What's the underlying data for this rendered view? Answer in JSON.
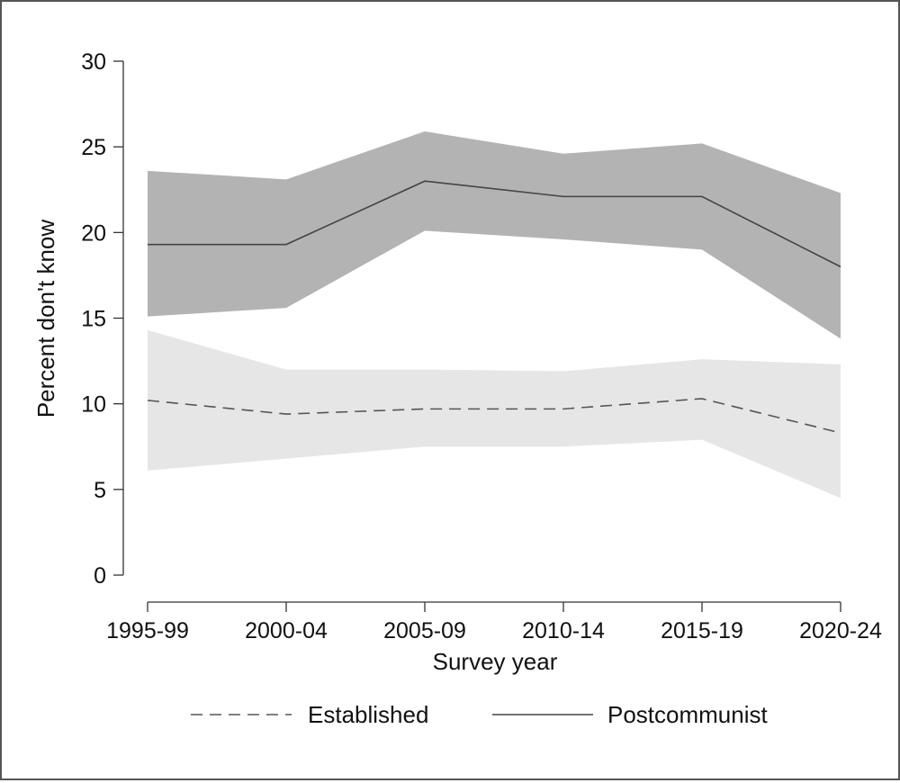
{
  "chart_data": {
    "type": "line",
    "title": "",
    "xlabel": "Survey year",
    "ylabel": "Percent don't know",
    "categories": [
      "1995-99",
      "2000-04",
      "2005-09",
      "2010-14",
      "2015-19",
      "2020-24"
    ],
    "ylim": [
      0,
      30
    ],
    "yticks": [
      0,
      5,
      10,
      15,
      20,
      25,
      30
    ],
    "grid": false,
    "legend_position": "bottom",
    "series": [
      {
        "name": "Established",
        "line_style": "dashed",
        "values": [
          10.2,
          9.4,
          9.7,
          9.7,
          10.3,
          8.3
        ],
        "ci_lower": [
          6.1,
          6.8,
          7.5,
          7.5,
          7.9,
          4.5
        ],
        "ci_upper": [
          14.3,
          12.0,
          12.0,
          11.9,
          12.6,
          12.3
        ],
        "band_color": "#e6e6e6",
        "line_color": "#555555"
      },
      {
        "name": "Postcommunist",
        "line_style": "solid",
        "values": [
          19.3,
          19.3,
          23.0,
          22.1,
          22.1,
          18.0
        ],
        "ci_lower": [
          15.1,
          15.6,
          20.1,
          19.6,
          19.0,
          13.8
        ],
        "ci_upper": [
          23.6,
          23.1,
          25.9,
          24.6,
          25.2,
          22.3
        ],
        "band_color": "#b3b3b3",
        "line_color": "#444444"
      }
    ]
  }
}
